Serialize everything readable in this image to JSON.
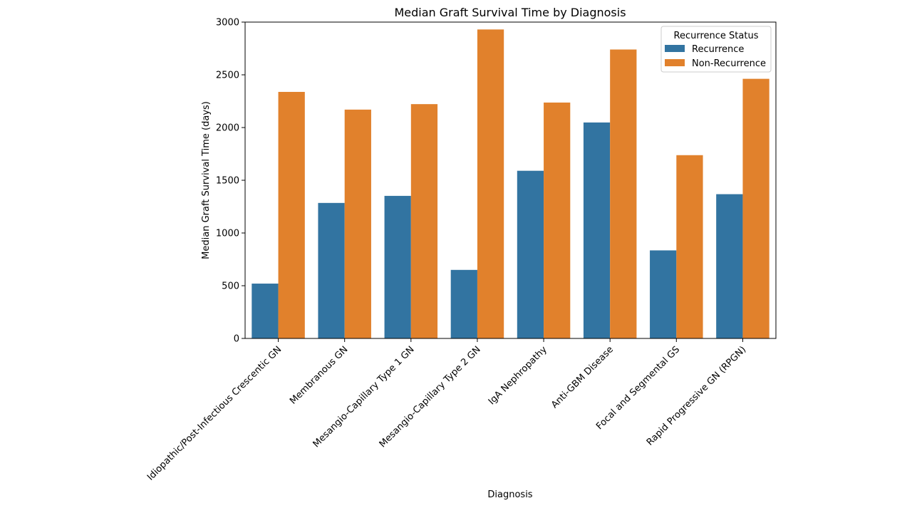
{
  "chart_data": {
    "type": "bar",
    "title": "Median Graft Survival Time by Diagnosis",
    "xlabel": "Diagnosis",
    "ylabel": "Median Graft Survival Time (days)",
    "ylim": [
      0,
      3000
    ],
    "yticks": [
      0,
      500,
      1000,
      1500,
      2000,
      2500,
      3000
    ],
    "grid": false,
    "legend_title": "Recurrence Status",
    "legend_position": "top-right",
    "categories": [
      "Idiopathic/Post-Infectious Crescentic GN",
      "Membranous GN",
      "Mesangio-Capillary Type 1 GN",
      "Mesangio-Capillary Type 2 GN",
      "IgA Nephropathy",
      "Anti-GBM Disease",
      "Focal and Segmental GS",
      "Rapid Progressive GN (RPGN)"
    ],
    "series": [
      {
        "name": "Recurrence",
        "color": "#3274a1",
        "values": [
          520,
          1285,
          1352,
          650,
          1590,
          2048,
          835,
          1368
        ]
      },
      {
        "name": "Non-Recurrence",
        "color": "#e1812c",
        "values": [
          2338,
          2170,
          2222,
          2930,
          2237,
          2740,
          1738,
          2462
        ]
      }
    ]
  }
}
